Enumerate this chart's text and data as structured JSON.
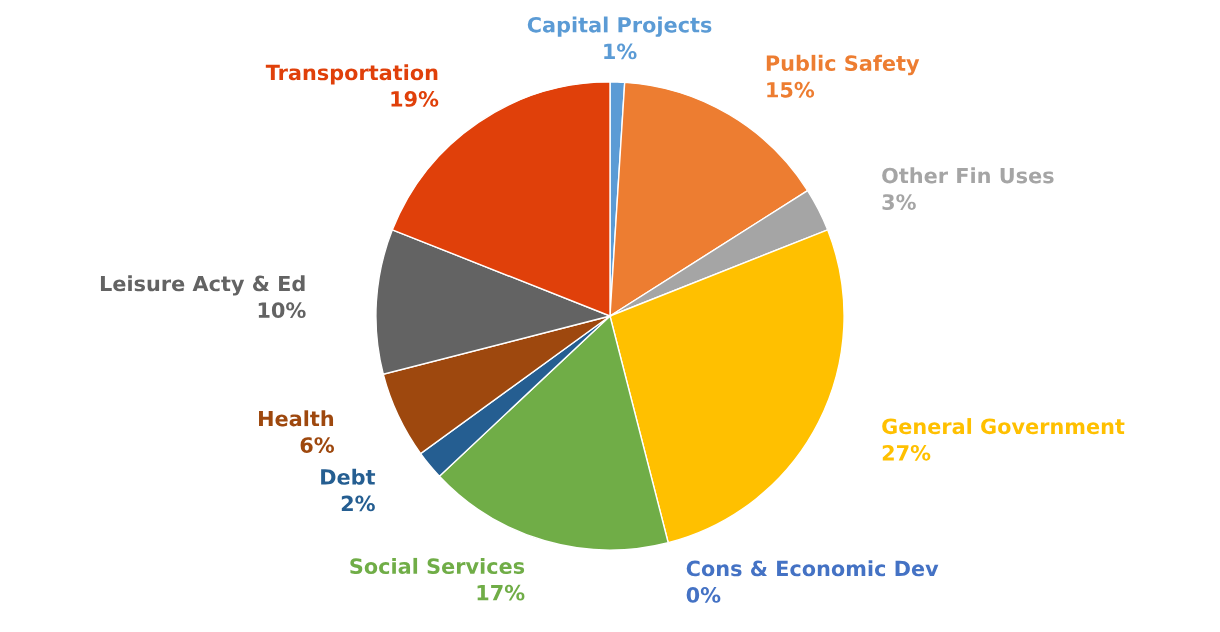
{
  "chart_data": {
    "type": "pie",
    "categories": [
      "Capital Projects",
      "Public Safety",
      "Other Fin Uses",
      "General Government",
      "Cons & Economic Dev",
      "Social Services",
      "Debt",
      "Health",
      "Leisure Acty & Ed",
      "Transportation"
    ],
    "values": [
      1,
      15,
      3,
      27,
      0,
      17,
      2,
      6,
      10,
      19
    ],
    "value_labels": [
      "1%",
      "15%",
      "3%",
      "27%",
      "0%",
      "17%",
      "2%",
      "6%",
      "10%",
      "19%"
    ],
    "colors": [
      "#5b9bd5",
      "#ed7d31",
      "#a5a5a5",
      "#ffc000",
      "#4472c4",
      "#70ad47",
      "#255e91",
      "#9e480e",
      "#636363",
      "#e0400a"
    ],
    "legend": false
  }
}
